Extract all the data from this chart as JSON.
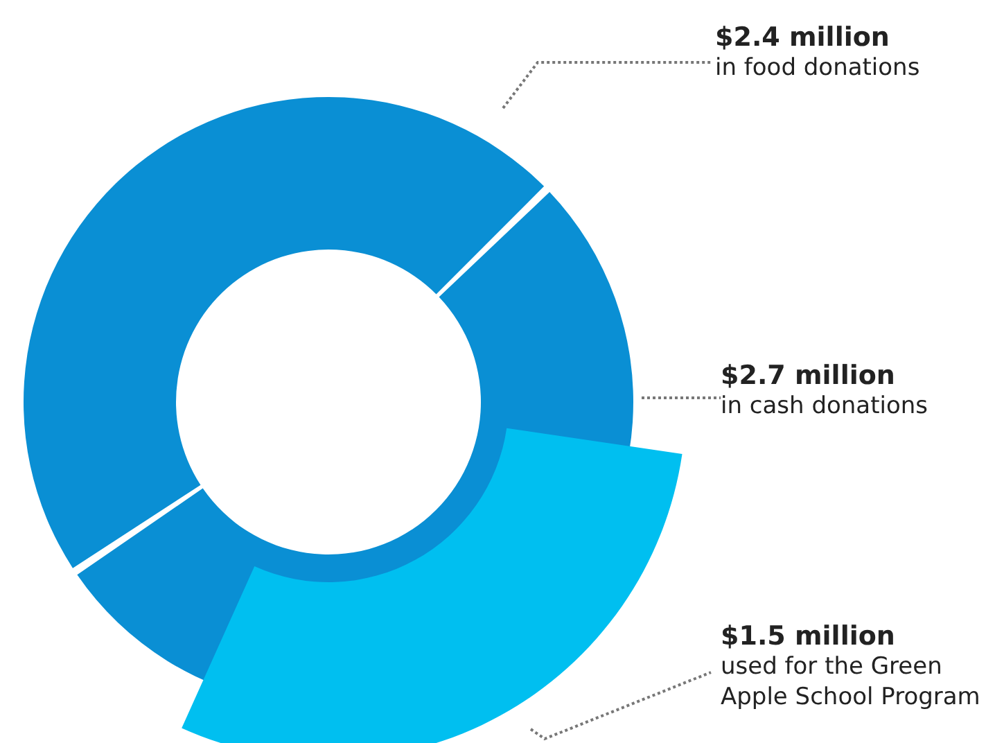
{
  "chart_data": [
    {
      "type": "donut",
      "categories": [
        "in food donations",
        "in cash donations"
      ],
      "values": [
        2.4,
        2.7
      ],
      "colors": [
        "#0a8fd4",
        "#0a8fd4"
      ],
      "value_labels": [
        "$2.4 million",
        "$2.7 million"
      ]
    },
    {
      "type": "other",
      "categories": [
        "used for the Green Apple School Program"
      ],
      "values": [
        1.5
      ],
      "colors": [
        "#00bff0"
      ],
      "value_labels": [
        "$1.5 million"
      ]
    }
  ]
}
